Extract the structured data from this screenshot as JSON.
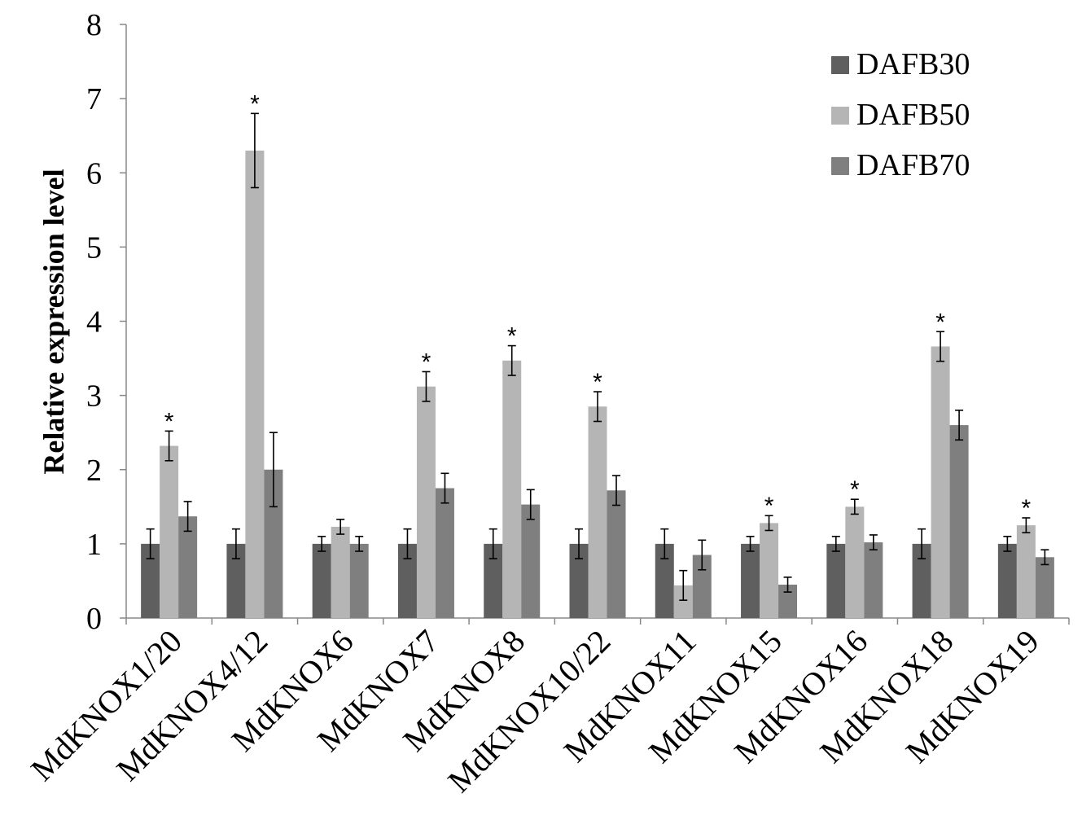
{
  "chart_data": {
    "type": "bar",
    "title": "",
    "xlabel": "",
    "ylabel": "Relative expression level",
    "ylim": [
      0,
      8
    ],
    "yticks": [
      0,
      1,
      2,
      3,
      4,
      5,
      6,
      7,
      8
    ],
    "grid": false,
    "legend_position": "top-right",
    "categories": [
      "MdKNOX1/20",
      "MdKNOX4/12",
      "MdKNOX6",
      "MdKNOX7",
      "MdKNOX8",
      "MdKNOX10/22",
      "MdKNOX11",
      "MdKNOX15",
      "MdKNOX16",
      "MdKNOX18",
      "MdKNOX19"
    ],
    "series": [
      {
        "name": "DAFB30",
        "color": "#5f5f5f",
        "values": [
          1.0,
          1.0,
          1.0,
          1.0,
          1.0,
          1.0,
          1.0,
          1.0,
          1.0,
          1.0,
          1.0
        ],
        "errors": [
          0.2,
          0.2,
          0.1,
          0.2,
          0.2,
          0.2,
          0.2,
          0.1,
          0.1,
          0.2,
          0.1
        ]
      },
      {
        "name": "DAFB50",
        "color": "#b5b5b5",
        "values": [
          2.32,
          6.3,
          1.23,
          3.12,
          3.47,
          2.85,
          0.44,
          1.28,
          1.5,
          3.66,
          1.25
        ],
        "errors": [
          0.2,
          0.5,
          0.1,
          0.2,
          0.2,
          0.2,
          0.2,
          0.1,
          0.1,
          0.2,
          0.1
        ]
      },
      {
        "name": "DAFB70",
        "color": "#7f7f7f",
        "values": [
          1.37,
          2.0,
          1.0,
          1.75,
          1.53,
          1.72,
          0.85,
          0.45,
          1.02,
          2.6,
          0.82
        ],
        "errors": [
          0.2,
          0.5,
          0.1,
          0.2,
          0.2,
          0.2,
          0.2,
          0.1,
          0.1,
          0.2,
          0.1
        ]
      }
    ],
    "annotations": [
      {
        "category": "MdKNOX1/20",
        "series": "DAFB50",
        "text": "*"
      },
      {
        "category": "MdKNOX4/12",
        "series": "DAFB50",
        "text": "*"
      },
      {
        "category": "MdKNOX7",
        "series": "DAFB50",
        "text": "*"
      },
      {
        "category": "MdKNOX8",
        "series": "DAFB50",
        "text": "*"
      },
      {
        "category": "MdKNOX10/22",
        "series": "DAFB50",
        "text": "*"
      },
      {
        "category": "MdKNOX15",
        "series": "DAFB50",
        "text": "*"
      },
      {
        "category": "MdKNOX16",
        "series": "DAFB50",
        "text": "*"
      },
      {
        "category": "MdKNOX18",
        "series": "DAFB50",
        "text": "*"
      },
      {
        "category": "MdKNOX19",
        "series": "DAFB50",
        "text": "*"
      }
    ]
  }
}
